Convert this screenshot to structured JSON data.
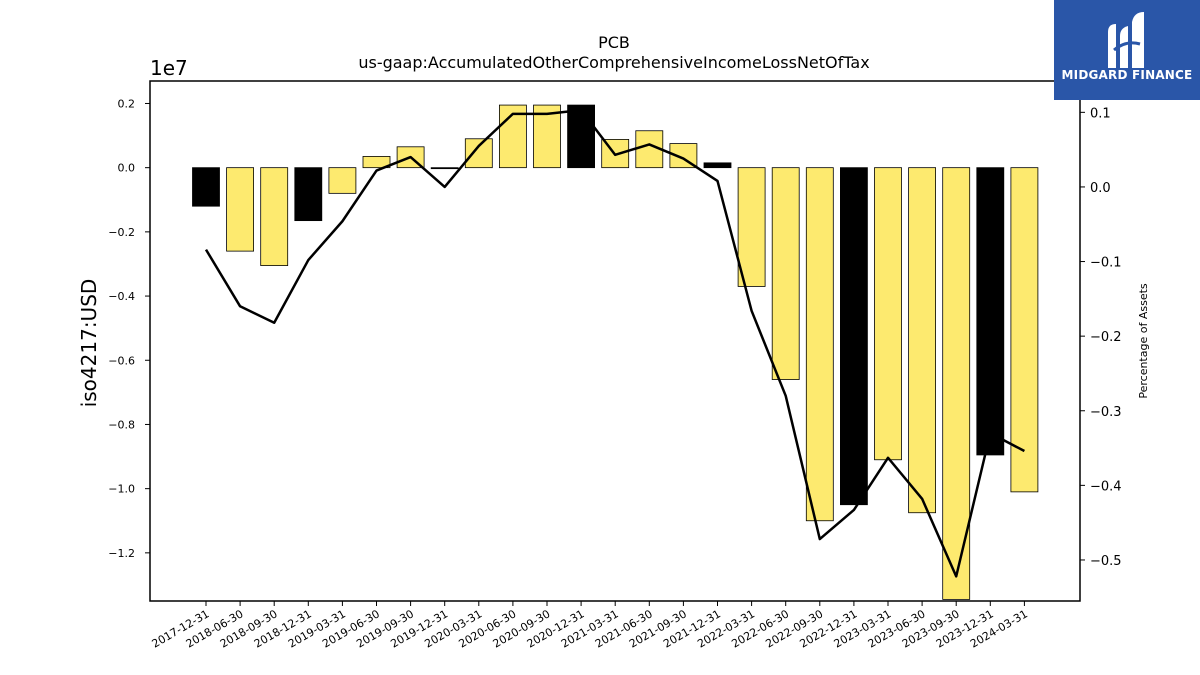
{
  "chart_data": {
    "type": "bar",
    "title": "PCB",
    "subtitle": "us-gaap:AccumulatedOtherComprehensiveIncomeLossNetOfTax",
    "ylabel": "iso4217:USD",
    "y2label": "Percentage of Assets",
    "offset_label": "1e7",
    "categories": [
      "2017-12-31",
      "2018-06-30",
      "2018-09-30",
      "2018-12-31",
      "2019-03-31",
      "2019-06-30",
      "2019-09-30",
      "2019-12-31",
      "2020-03-31",
      "2020-06-30",
      "2020-09-30",
      "2020-12-31",
      "2021-03-31",
      "2021-06-30",
      "2021-09-30",
      "2021-12-31",
      "2022-03-31",
      "2022-06-30",
      "2022-09-30",
      "2022-12-31",
      "2023-03-31",
      "2023-06-30",
      "2023-09-30",
      "2023-12-31",
      "2024-03-31"
    ],
    "series": [
      {
        "type": "bar",
        "values": [
          -0.12,
          -0.26,
          -0.305,
          -0.165,
          -0.08,
          0.035,
          0.065,
          -0.003,
          0.09,
          0.195,
          0.195,
          0.195,
          0.088,
          0.115,
          0.075,
          0.015,
          -0.37,
          -0.66,
          -1.1,
          -1.05,
          -0.91,
          -1.075,
          -1.345,
          -0.895,
          -1.01
        ],
        "highlight": [
          true,
          false,
          false,
          true,
          false,
          false,
          false,
          true,
          false,
          false,
          false,
          true,
          false,
          false,
          false,
          true,
          false,
          false,
          false,
          true,
          false,
          false,
          false,
          true,
          false
        ]
      },
      {
        "type": "line",
        "axis": "right",
        "values": [
          -0.084,
          -0.16,
          -0.182,
          -0.098,
          -0.046,
          0.022,
          0.04,
          0.0,
          0.055,
          0.098,
          0.098,
          0.103,
          0.043,
          0.057,
          0.038,
          0.008,
          -0.166,
          -0.28,
          -0.472,
          -0.433,
          -0.363,
          -0.418,
          -0.522,
          -0.33,
          -0.354
        ]
      }
    ],
    "ylim": [
      -1.35,
      0.27
    ],
    "yticks": [
      0.2,
      0.0,
      -0.2,
      -0.4,
      -0.6,
      -0.8,
      -1.0,
      -1.2
    ],
    "ytick_labels": [
      "0.2",
      "0.0",
      "−0.2",
      "−0.4",
      "−0.6",
      "−0.8",
      "−1.0",
      "−1.2"
    ],
    "y2lim": [
      -0.555,
      0.142
    ],
    "y2ticks": [
      0.1,
      0.0,
      -0.1,
      -0.2,
      -0.3,
      -0.4,
      -0.5
    ],
    "y2tick_labels": [
      "0.1",
      "0.0",
      "−0.1",
      "−0.2",
      "−0.3",
      "−0.4",
      "−0.5"
    ],
    "colors": {
      "bar": "#fdea6f",
      "bar_highlight": "#000000",
      "line": "#000000",
      "edge": "#000000"
    },
    "grid": false
  },
  "logo": {
    "text": "MIDGARD FINANCE",
    "bg": "#2a56a8"
  }
}
